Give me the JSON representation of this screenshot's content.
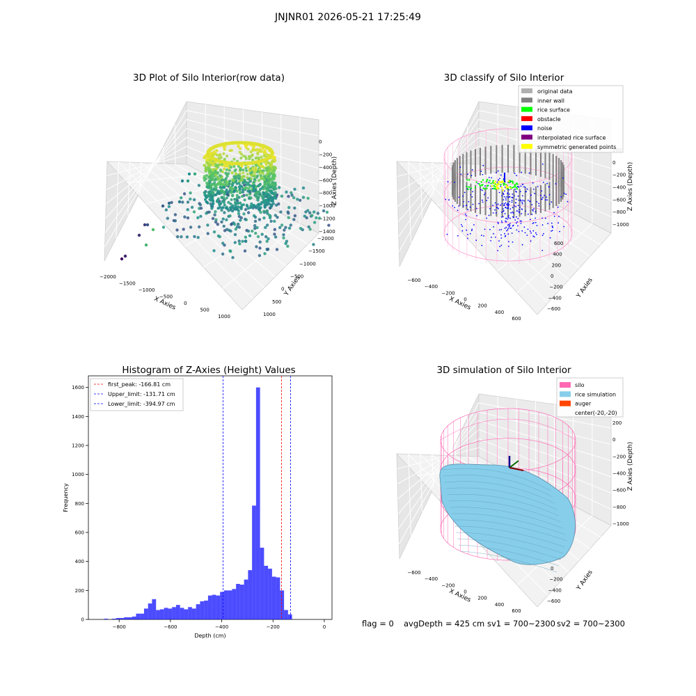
{
  "suptitle": "JNJNR01 2026-05-21 17:25:49",
  "panels": {
    "raw": {
      "title": "3D Plot of Silo Interior(row data)",
      "xlabel": "X Axies",
      "ylabel": "Y Axies",
      "zlabel": "Z Axies (Depth)",
      "xticks": [
        "−2000",
        "−1500",
        "−1000",
        "−500",
        "0",
        "500",
        "1000"
      ],
      "yticks": [
        "1000",
        "500",
        "0",
        "−500",
        "−1000",
        "−1500",
        "−2000"
      ],
      "zticks": [
        "0",
        "−200",
        "−400",
        "−600",
        "−800",
        "−1000",
        "−1200",
        "−1400"
      ]
    },
    "classify": {
      "title": "3D classify of Silo Interior",
      "xlabel": "X Axies",
      "ylabel": "Y Axies",
      "zlabel": "Z Axies (Depth)",
      "xticks": [
        "−600",
        "−400",
        "−200",
        "0",
        "200",
        "400",
        "600"
      ],
      "yticks": [
        "600",
        "400",
        "200",
        "0",
        "−200",
        "−400",
        "−600"
      ],
      "zticks": [
        "200",
        "0",
        "−200",
        "−400",
        "−600",
        "−800",
        "−1000"
      ],
      "legend": [
        {
          "label": "original data",
          "color": "#b0b0b0"
        },
        {
          "label": "inner wall",
          "color": "#808080"
        },
        {
          "label": "rice surface",
          "color": "#00ff00"
        },
        {
          "label": "obstacle",
          "color": "#ff0000"
        },
        {
          "label": "noise",
          "color": "#0000ff"
        },
        {
          "label": "interpolated rice surface",
          "color": "#800080"
        },
        {
          "label": "symmetric generated points",
          "color": "#ffff00"
        }
      ]
    },
    "sim": {
      "title": "3D simulation of Silo Interior",
      "xlabel": "X Axies",
      "ylabel": "Y Axies",
      "zlabel": "Z Axies (Depth)",
      "xticks": [
        "−600",
        "−400",
        "−200",
        "0",
        "200",
        "400",
        "600"
      ],
      "yticks": [
        "600",
        "400",
        "200",
        "0",
        "−200",
        "−400",
        "−600"
      ],
      "zticks": [
        "200",
        "0",
        "−200",
        "−400",
        "−600",
        "−800",
        "−1000"
      ],
      "legend": [
        {
          "label": "silo",
          "color": "#ff69b4"
        },
        {
          "label": "rice simulation",
          "color": "#87ceeb"
        },
        {
          "label": "auger",
          "color": "#ff4500"
        },
        {
          "label": "center(-20,-20)",
          "color": ""
        }
      ]
    }
  },
  "status": {
    "flag": "flag = 0",
    "avg": "avgDepth = 425 cm",
    "sv1": "sv1 = 700~2300",
    "sv2": "sv2 = 700~2300"
  },
  "chart_data": [
    {
      "type": "bar",
      "title": "Histogram of Z-Axies (Height) Values",
      "xlabel": "Depth (cm)",
      "ylabel": "Frequency",
      "xlim": [
        -920,
        30
      ],
      "ylim": [
        0,
        1680
      ],
      "xticks": [
        -800,
        -600,
        -400,
        -200,
        0
      ],
      "yticks": [
        0,
        200,
        400,
        600,
        800,
        1000,
        1200,
        1400,
        1600
      ],
      "bin_width": 15.6,
      "bin_start": -859,
      "values": [
        5,
        0,
        5,
        10,
        10,
        15,
        15,
        20,
        40,
        40,
        75,
        110,
        140,
        65,
        70,
        80,
        75,
        85,
        100,
        80,
        70,
        85,
        75,
        105,
        125,
        130,
        165,
        170,
        165,
        190,
        200,
        200,
        210,
        245,
        240,
        275,
        340,
        785,
        1600,
        495,
        370,
        350,
        295,
        290,
        200,
        65,
        35
      ],
      "bar_color": "#0000ff",
      "bar_alpha": 0.7,
      "lines": [
        {
          "label": "first_peak: -166.81 cm",
          "x": -166.81,
          "color": "#ff0000"
        },
        {
          "label": "Upper_limit: -131.71 cm",
          "x": -131.71,
          "color": "#0000ff"
        },
        {
          "label": "Lower_limit: -394.97 cm",
          "x": -394.97,
          "color": "#0000ff"
        }
      ],
      "legend_position": "top-left",
      "grid": false
    }
  ]
}
